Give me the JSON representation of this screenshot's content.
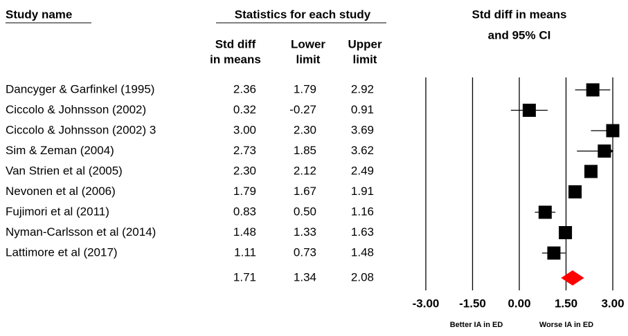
{
  "chart_data": {
    "type": "forest",
    "title_lines": [
      "Std diff in means",
      "and 95% CI"
    ],
    "study_header": "Study name",
    "stats_header": "Statistics for each study",
    "column_headers": [
      [
        "Std diff",
        "in means"
      ],
      [
        "Lower",
        "limit"
      ],
      [
        "Upper",
        "limit"
      ]
    ],
    "categories": [
      "Dancyger & Garfinkel (1995)",
      "Ciccolo & Johnsson (2002)",
      "Ciccolo & Johnsson (2002) 3",
      "Sim & Zeman (2004)",
      "Van Strien et al (2005)",
      "Nevonen et al (2006)",
      "Fujimori et al (2011)",
      "Nyman-Carlsson et al (2014)",
      "Lattimore et al (2017)"
    ],
    "values": [
      2.36,
      0.32,
      3,
      2.73,
      2.3,
      1.79,
      0.83,
      1.48,
      1.11
    ],
    "value_labels": [
      "2.36",
      "0.32",
      "3.00",
      "2.73",
      "2.30",
      "1.79",
      "0.83",
      "1.48",
      "1.11"
    ],
    "lower": [
      1.79,
      -0.27,
      2.3,
      1.85,
      2.12,
      1.67,
      0.5,
      1.33,
      0.73
    ],
    "lower_labels": [
      "1.79",
      "-0.27",
      "2.30",
      "1.85",
      "2.12",
      "1.67",
      "0.50",
      "1.33",
      "0.73"
    ],
    "upper": [
      2.92,
      0.91,
      3.69,
      3.62,
      2.49,
      1.91,
      1.16,
      1.63,
      1.48
    ],
    "upper_labels": [
      "2.92",
      "0.91",
      "3.69",
      "3.62",
      "2.49",
      "1.91",
      "1.16",
      "1.63",
      "1.48"
    ],
    "summary": {
      "value": 1.71,
      "lower": 1.34,
      "upper": 2.08,
      "labels": [
        "1.71",
        "1.34",
        "2.08"
      ],
      "color": "#ff0000"
    },
    "marker_color": "#000000",
    "xlim": [
      -3,
      3
    ],
    "xticks": [
      {
        "value": -3,
        "label": "-3.00"
      },
      {
        "value": -1.5,
        "label": "-1.50"
      },
      {
        "value": 0,
        "label": "0.00"
      },
      {
        "value": 1.5,
        "label": "1.50"
      },
      {
        "value": 3,
        "label": "3.00"
      }
    ],
    "grid": true,
    "xlabel_left": "Better IA in ED",
    "xlabel_right": "Worse IA in ED"
  }
}
